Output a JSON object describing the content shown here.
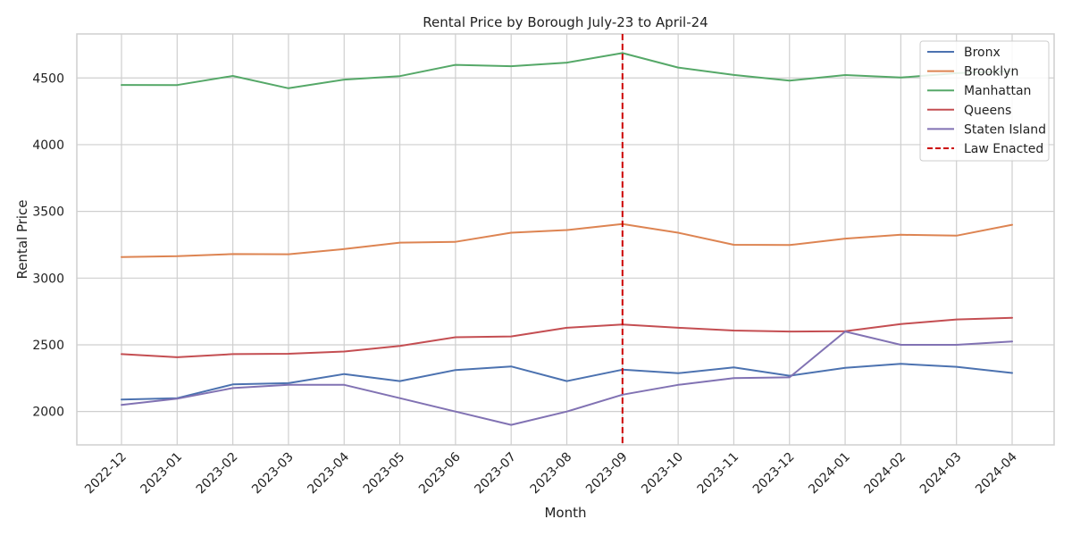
{
  "chart_data": {
    "type": "line",
    "title": "Rental Price by Borough July-23 to April-24",
    "xlabel": "Month",
    "ylabel": "Rental Price",
    "ylim": [
      1750,
      4830
    ],
    "yticks": [
      2000,
      2500,
      3000,
      3500,
      4000,
      4500
    ],
    "grid": true,
    "legend_position": "top-right",
    "categories": [
      "2022-12",
      "2023-01",
      "2023-02",
      "2023-03",
      "2023-04",
      "2023-05",
      "2023-06",
      "2023-07",
      "2023-08",
      "2023-09",
      "2023-10",
      "2023-11",
      "2023-12",
      "2024-01",
      "2024-02",
      "2024-03",
      "2024-04"
    ],
    "series": [
      {
        "name": "Bronx",
        "color": "#4c72b0",
        "values": [
          2090,
          2100,
          2203,
          2213,
          2281,
          2228,
          2311,
          2338,
          2228,
          2314,
          2287,
          2331,
          2268,
          2328,
          2357,
          2335,
          2289
        ]
      },
      {
        "name": "Brooklyn",
        "color": "#dd8452",
        "values": [
          3158,
          3164,
          3180,
          3179,
          3218,
          3266,
          3272,
          3340,
          3360,
          3405,
          3340,
          3250,
          3248,
          3296,
          3325,
          3318,
          3400
        ]
      },
      {
        "name": "Manhattan",
        "color": "#55a868",
        "values": [
          4448,
          4447,
          4515,
          4423,
          4488,
          4514,
          4598,
          4588,
          4615,
          4687,
          4578,
          4523,
          4480,
          4522,
          4503,
          4536,
          4550
        ]
      },
      {
        "name": "Queens",
        "color": "#c44e52",
        "values": [
          2430,
          2407,
          2430,
          2433,
          2450,
          2492,
          2557,
          2563,
          2628,
          2652,
          2628,
          2607,
          2600,
          2602,
          2656,
          2690,
          2703
        ]
      },
      {
        "name": "Staten Island",
        "color": "#8172b3",
        "values": [
          2050,
          2096,
          2176,
          2200,
          2200,
          2100,
          2000,
          1900,
          2000,
          2126,
          2200,
          2250,
          2256,
          2600,
          2500,
          2500,
          2525
        ]
      }
    ],
    "annotation": {
      "label": "Law Enacted",
      "x": "2023-09",
      "color": "#cc0000"
    }
  }
}
